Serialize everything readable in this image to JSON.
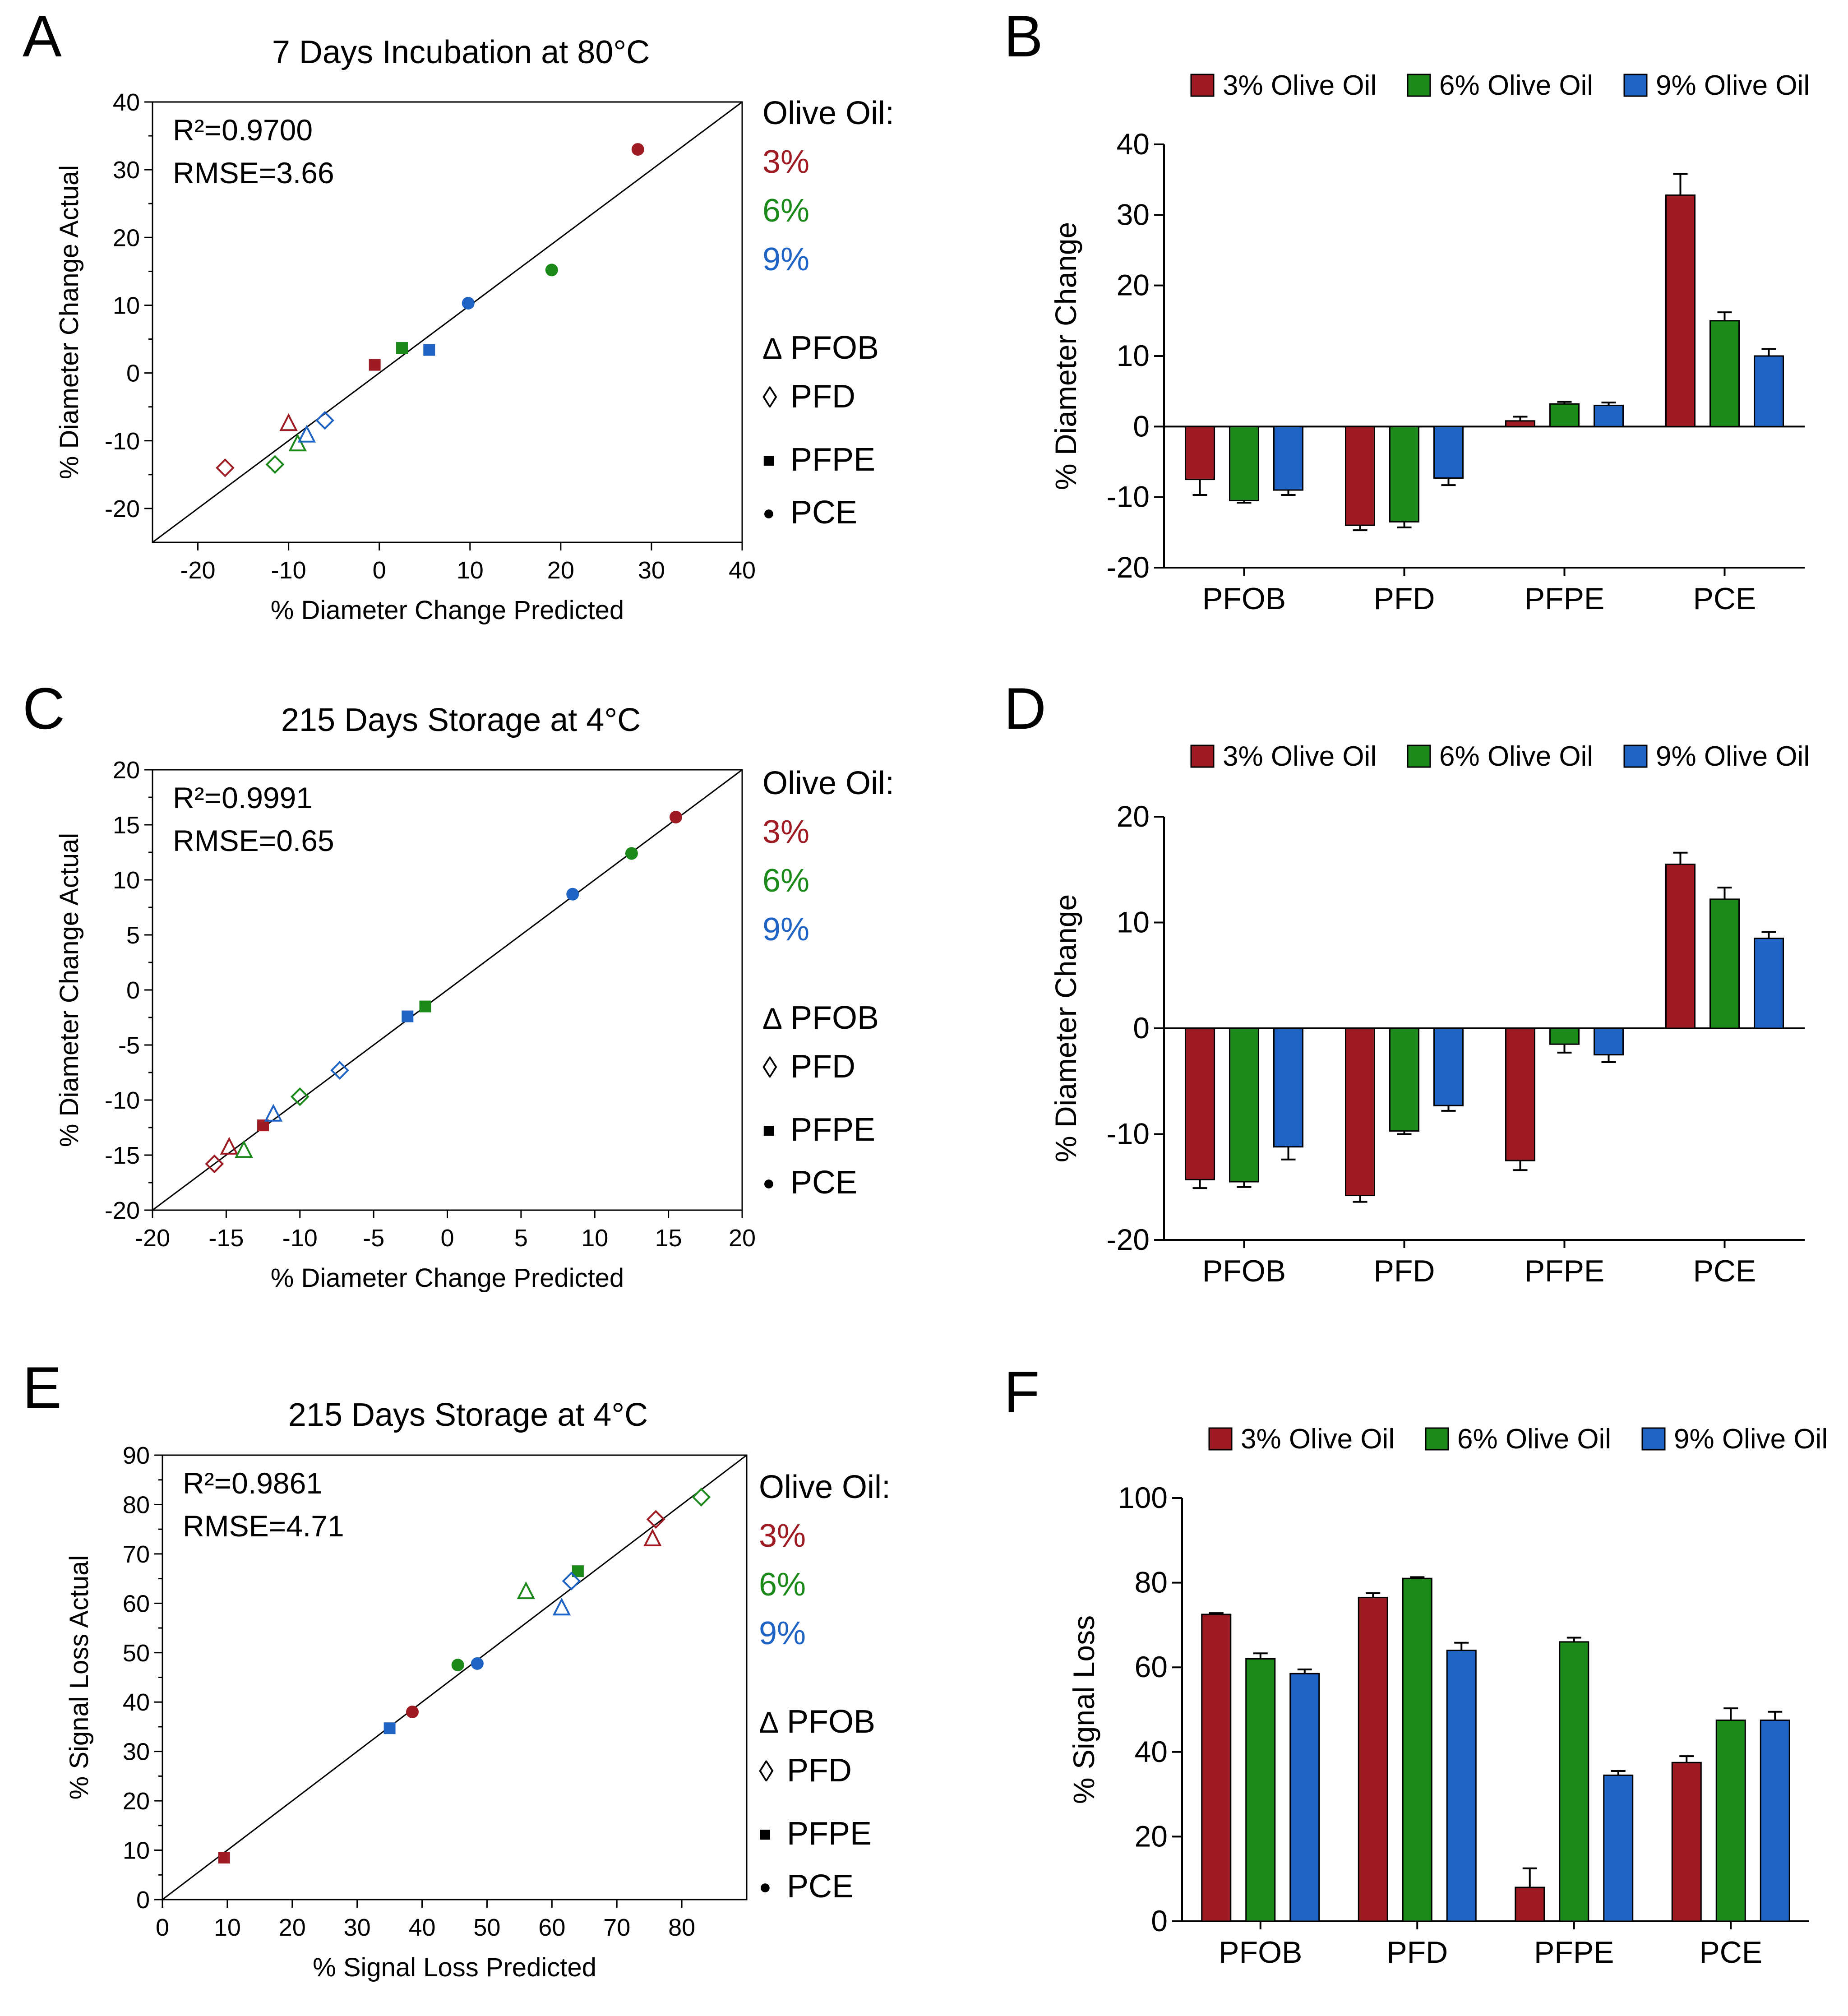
{
  "colors": {
    "c3": "#9e1b24",
    "c6": "#1b8a1b",
    "c9": "#1f64c4",
    "axis": "#000000"
  },
  "legend": {
    "olive_oil_label": "Olive Oil:",
    "levels": [
      "3%",
      "6%",
      "9%"
    ],
    "shapes": [
      {
        "label": "PFOB",
        "icon": "triangle-icon",
        "glyph": "Δ"
      },
      {
        "label": "PFD",
        "icon": "diamond-icon",
        "glyph": "◊"
      },
      {
        "label": "PFPE",
        "icon": "square-icon",
        "glyph": "■"
      },
      {
        "label": "PCE",
        "icon": "circle-icon",
        "glyph": "●"
      }
    ],
    "bar_series": [
      "3% Olive Oil",
      "6% Olive Oil",
      "9% Olive Oil"
    ]
  },
  "chart_data": [
    {
      "id": "A",
      "type": "scatter",
      "title": "7 Days Incubation at 80°C",
      "xlabel": "% Diameter Change Predicted",
      "ylabel": "% Diameter Change Actual",
      "xlim": [
        -25,
        40
      ],
      "ylim": [
        -25,
        40
      ],
      "xticks": [
        -20,
        -10,
        0,
        10,
        20,
        30,
        40
      ],
      "yticks": [
        -20,
        -10,
        0,
        10,
        20,
        30,
        40
      ],
      "stats": {
        "r2": "R²=0.9700",
        "rmse": "RMSE=3.66"
      },
      "points": [
        {
          "x": 28.5,
          "y": 33,
          "shape": "circle",
          "oil": "3%"
        },
        {
          "x": 19,
          "y": 15.2,
          "shape": "circle",
          "oil": "6%"
        },
        {
          "x": 9.8,
          "y": 10.3,
          "shape": "circle",
          "oil": "9%"
        },
        {
          "x": -0.5,
          "y": 1.2,
          "shape": "square",
          "oil": "3%"
        },
        {
          "x": 2.5,
          "y": 3.7,
          "shape": "square",
          "oil": "6%"
        },
        {
          "x": 5.5,
          "y": 3.4,
          "shape": "square",
          "oil": "9%"
        },
        {
          "x": -10,
          "y": -7.5,
          "shape": "triangle",
          "oil": "3%"
        },
        {
          "x": -9,
          "y": -10.5,
          "shape": "triangle",
          "oil": "6%"
        },
        {
          "x": -8,
          "y": -9.2,
          "shape": "triangle",
          "oil": "9%"
        },
        {
          "x": -17,
          "y": -14,
          "shape": "diamond",
          "oil": "3%"
        },
        {
          "x": -11.5,
          "y": -13.5,
          "shape": "diamond",
          "oil": "6%"
        },
        {
          "x": -6,
          "y": -7,
          "shape": "diamond",
          "oil": "9%"
        }
      ]
    },
    {
      "id": "B",
      "type": "bar",
      "categories": [
        "PFOB",
        "PFD",
        "PFPE",
        "PCE"
      ],
      "ylabel": "% Diameter Change",
      "ylim": [
        -20,
        40
      ],
      "yticks": [
        -20,
        -10,
        0,
        10,
        20,
        30,
        40
      ],
      "series": [
        {
          "name": "3% Olive Oil",
          "values": [
            -7.5,
            -14,
            0.8,
            32.8
          ],
          "errors": [
            2.2,
            0.7,
            0.6,
            3
          ]
        },
        {
          "name": "6% Olive Oil",
          "values": [
            -10.5,
            -13.5,
            3.2,
            15
          ],
          "errors": [
            0.3,
            0.8,
            0.3,
            1.2
          ]
        },
        {
          "name": "9% Olive Oil",
          "values": [
            -9,
            -7.3,
            3,
            10
          ],
          "errors": [
            0.7,
            1,
            0.4,
            1
          ]
        }
      ]
    },
    {
      "id": "C",
      "type": "scatter",
      "title": "215 Days Storage at 4°C",
      "xlabel": "% Diameter Change Predicted",
      "ylabel": "% Diameter Change Actual",
      "xlim": [
        -20,
        20
      ],
      "ylim": [
        -20,
        20
      ],
      "xticks": [
        -20,
        -15,
        -10,
        -5,
        0,
        5,
        10,
        15,
        20
      ],
      "yticks": [
        -20,
        -15,
        -10,
        -5,
        0,
        5,
        10,
        15,
        20
      ],
      "stats": {
        "r2": "R²=0.9991",
        "rmse": "RMSE=0.65"
      },
      "points": [
        {
          "x": 15.5,
          "y": 15.7,
          "shape": "circle",
          "oil": "3%"
        },
        {
          "x": 12.5,
          "y": 12.4,
          "shape": "circle",
          "oil": "6%"
        },
        {
          "x": 8.5,
          "y": 8.7,
          "shape": "circle",
          "oil": "9%"
        },
        {
          "x": -12.5,
          "y": -12.3,
          "shape": "square",
          "oil": "3%"
        },
        {
          "x": -1.5,
          "y": -1.5,
          "shape": "square",
          "oil": "6%"
        },
        {
          "x": -2.7,
          "y": -2.4,
          "shape": "square",
          "oil": "9%"
        },
        {
          "x": -14.8,
          "y": -14.3,
          "shape": "triangle",
          "oil": "3%"
        },
        {
          "x": -13.8,
          "y": -14.6,
          "shape": "triangle",
          "oil": "6%"
        },
        {
          "x": -11.8,
          "y": -11.3,
          "shape": "triangle",
          "oil": "9%"
        },
        {
          "x": -15.8,
          "y": -15.8,
          "shape": "diamond",
          "oil": "3%"
        },
        {
          "x": -10,
          "y": -9.7,
          "shape": "diamond",
          "oil": "6%"
        },
        {
          "x": -7.3,
          "y": -7.3,
          "shape": "diamond",
          "oil": "9%"
        }
      ]
    },
    {
      "id": "D",
      "type": "bar",
      "categories": [
        "PFOB",
        "PFD",
        "PFPE",
        "PCE"
      ],
      "ylabel": "% Diameter Change",
      "ylim": [
        -20,
        20
      ],
      "yticks": [
        -20,
        -10,
        0,
        10,
        20
      ],
      "series": [
        {
          "name": "3% Olive Oil",
          "values": [
            -14.3,
            -15.8,
            -12.5,
            15.5
          ],
          "errors": [
            0.8,
            0.6,
            0.9,
            1.1
          ]
        },
        {
          "name": "6% Olive Oil",
          "values": [
            -14.5,
            -9.7,
            -1.5,
            12.2
          ],
          "errors": [
            0.5,
            0.3,
            0.8,
            1.1
          ]
        },
        {
          "name": "9% Olive Oil",
          "values": [
            -11.2,
            -7.3,
            -2.5,
            8.5
          ],
          "errors": [
            1.2,
            0.5,
            0.7,
            0.6
          ]
        }
      ]
    },
    {
      "id": "E",
      "type": "scatter",
      "title": "215 Days Storage at 4°C",
      "xlabel": "% Signal Loss Predicted",
      "ylabel": "% Signal Loss Actual",
      "xlim": [
        0,
        90
      ],
      "ylim": [
        0,
        90
      ],
      "xticks": [
        0,
        10,
        20,
        30,
        40,
        50,
        60,
        70,
        80
      ],
      "yticks": [
        0,
        10,
        20,
        30,
        40,
        50,
        60,
        70,
        80,
        90
      ],
      "stats": {
        "r2": "R²=0.9861",
        "rmse": "RMSE=4.71"
      },
      "points": [
        {
          "x": 38.5,
          "y": 38,
          "shape": "circle",
          "oil": "3%"
        },
        {
          "x": 45.5,
          "y": 47.5,
          "shape": "circle",
          "oil": "6%"
        },
        {
          "x": 48.5,
          "y": 47.8,
          "shape": "circle",
          "oil": "9%"
        },
        {
          "x": 9.5,
          "y": 8.5,
          "shape": "square",
          "oil": "3%"
        },
        {
          "x": 64,
          "y": 66.5,
          "shape": "square",
          "oil": "6%"
        },
        {
          "x": 35,
          "y": 34.7,
          "shape": "square",
          "oil": "9%"
        },
        {
          "x": 75.5,
          "y": 73,
          "shape": "triangle",
          "oil": "3%"
        },
        {
          "x": 56,
          "y": 62.3,
          "shape": "triangle",
          "oil": "6%"
        },
        {
          "x": 61.5,
          "y": 59,
          "shape": "triangle",
          "oil": "9%"
        },
        {
          "x": 76,
          "y": 77,
          "shape": "diamond",
          "oil": "3%"
        },
        {
          "x": 83,
          "y": 81.5,
          "shape": "diamond",
          "oil": "6%"
        },
        {
          "x": 63,
          "y": 64.5,
          "shape": "diamond",
          "oil": "9%"
        }
      ]
    },
    {
      "id": "F",
      "type": "bar",
      "categories": [
        "PFOB",
        "PFD",
        "PFPE",
        "PCE"
      ],
      "ylabel": "% Signal Loss",
      "ylim": [
        0,
        100
      ],
      "yticks": [
        0,
        20,
        40,
        60,
        80,
        100
      ],
      "series": [
        {
          "name": "3% Olive Oil",
          "values": [
            72.5,
            76.5,
            8,
            37.5
          ],
          "errors": [
            0.3,
            1,
            4.5,
            1.5
          ]
        },
        {
          "name": "6% Olive Oil",
          "values": [
            62,
            81,
            66,
            47.5
          ],
          "errors": [
            1.3,
            0.3,
            1,
            2.8
          ]
        },
        {
          "name": "9% Olive Oil",
          "values": [
            58.5,
            64,
            34.5,
            47.5
          ],
          "errors": [
            1,
            1.8,
            1,
            2
          ]
        }
      ]
    }
  ]
}
